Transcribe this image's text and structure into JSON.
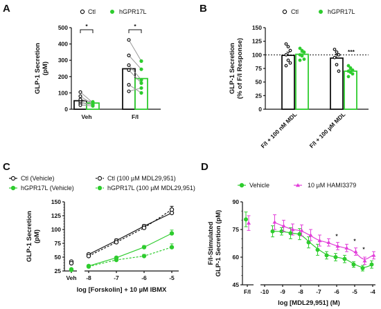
{
  "colors": {
    "ctl": "#111111",
    "hgpr": "#2ecc2e",
    "hami": "#e23dd9",
    "pair": "#999999"
  },
  "chart_data": [
    {
      "panel": "A",
      "type": "bar",
      "ylabel_line1": "GLP-1 Secretion",
      "ylabel_line2": "(pM)",
      "ylim": [
        0,
        500
      ],
      "yticks": [
        "0",
        "100",
        "200",
        "300",
        "400",
        "500"
      ],
      "categories": [
        "Veh",
        "F/I"
      ],
      "legend": [
        "Ctl",
        "hGPR17L"
      ],
      "series": [
        {
          "name": "Ctl",
          "values": [
            52,
            248
          ]
        },
        {
          "name": "hGPR17L",
          "values": [
            38,
            188
          ]
        }
      ],
      "pairs": [
        [
          [
            105,
            40
          ],
          [
            80,
            30
          ],
          [
            60,
            45
          ],
          [
            45,
            25
          ],
          [
            35,
            28
          ],
          [
            25,
            20
          ]
        ],
        [
          [
            425,
            295
          ],
          [
            330,
            245
          ],
          [
            270,
            180
          ],
          [
            240,
            160
          ],
          [
            150,
            100
          ],
          [
            110,
            130
          ]
        ]
      ],
      "significance": [
        "*",
        "*"
      ]
    },
    {
      "panel": "B",
      "type": "bar",
      "ylabel_line1": "GLP-1 Secretion",
      "ylabel_line2": "(% of F/I Response)",
      "ylim": [
        0,
        150
      ],
      "yticks": [
        "0",
        "25",
        "50",
        "75",
        "100",
        "125",
        "150"
      ],
      "categories": [
        "F/I + 100 nM MDL",
        "F/I + 100 µM MDL"
      ],
      "legend": [
        "Ctl",
        "hGPR17L"
      ],
      "series": [
        {
          "name": "Ctl",
          "values": [
            99,
            94
          ],
          "errors": [
            6,
            7
          ]
        },
        {
          "name": "hGPR17L",
          "values": [
            101,
            70
          ],
          "errors": [
            4,
            3
          ]
        }
      ],
      "points": [
        [
          [
            120,
            115,
            108,
            100,
            90,
            85,
            80
          ],
          [
            110,
            105,
            100,
            95,
            82,
            70
          ]
        ],
        [
          [
            112,
            108,
            105,
            100,
            98,
            92,
            90
          ],
          [
            80,
            76,
            72,
            70,
            68,
            65,
            60
          ]
        ]
      ],
      "reference_line": 100,
      "significance": "***"
    },
    {
      "panel": "C",
      "type": "line",
      "ylabel_line1": "GLP-1 Secretion",
      "ylabel_line2": "(pM)",
      "xlabel": "log [Forskolin] + 10 µM IBMX",
      "ylim": [
        25,
        150
      ],
      "yticks": [
        "25",
        "50",
        "75",
        "100",
        "125",
        "150"
      ],
      "xticks": [
        "Veh",
        "-8",
        "-7",
        "-6",
        "-5"
      ],
      "series": [
        {
          "name": "Ctl (Vehicle)",
          "veh": 42,
          "x": [
            -8,
            -7,
            -6,
            -5
          ],
          "y": [
            55,
            80,
            106,
            130
          ],
          "errors": [
            2,
            3,
            3,
            5
          ]
        },
        {
          "name": "Ctl (100 µM MDL29,951)",
          "veh": 39,
          "x": [
            -8,
            -7,
            -6,
            -5
          ],
          "y": [
            52,
            77,
            103,
            136
          ],
          "errors": [
            2,
            3,
            3,
            6
          ]
        },
        {
          "name": "hGPR17L (Vehicle)",
          "veh": 28,
          "x": [
            -8,
            -7,
            -6,
            -5
          ],
          "y": [
            34,
            49,
            68,
            93
          ],
          "errors": [
            2,
            2,
            3,
            6
          ]
        },
        {
          "name": "hGPR17L (100 µM MDL29,951)",
          "veh": 27,
          "x": [
            -8,
            -7,
            -6,
            -5
          ],
          "y": [
            33,
            45,
            52,
            68
          ],
          "errors": [
            2,
            2,
            3,
            6
          ]
        }
      ]
    },
    {
      "panel": "D",
      "type": "line",
      "ylabel_line1": "F/I-Stimulated",
      "ylabel_line2": "GLP-1 Secretion (pM)",
      "xlabel": "log [MDL29,951] (M)",
      "ylim": [
        45,
        90
      ],
      "yticks": [
        "45",
        "60",
        "75",
        "90"
      ],
      "xticks": [
        "F/I",
        "-10",
        "-9",
        "-8",
        "-7",
        "-6",
        "-5",
        "-4"
      ],
      "series": [
        {
          "name": "Vehicle",
          "fi": 80.5,
          "x": [
            -9.5,
            -9,
            -8.5,
            -8,
            -7.5,
            -7,
            -6.5,
            -6,
            -5.5,
            -5,
            -4.5,
            -4
          ],
          "y": [
            74,
            74,
            73,
            72.5,
            68,
            64,
            61,
            60,
            59,
            56,
            54,
            56
          ],
          "errors": [
            3,
            2,
            3,
            3,
            3,
            3,
            2,
            2,
            2,
            1.5,
            1.5,
            2
          ]
        },
        {
          "name": "10 µM HAMI3379",
          "fi": 78.5,
          "x": [
            -9.5,
            -9,
            -8.5,
            -8,
            -7.5,
            -7,
            -6.5,
            -6,
            -5.5,
            -5,
            -4.5,
            -4
          ],
          "y": [
            79,
            77,
            75,
            74.5,
            72,
            69,
            68,
            66,
            65,
            63,
            58,
            61
          ],
          "errors": [
            4,
            3,
            3,
            3,
            3,
            3,
            2,
            2,
            2,
            2,
            2,
            2
          ]
        }
      ],
      "significance": [
        "*",
        "*",
        "*"
      ]
    }
  ]
}
